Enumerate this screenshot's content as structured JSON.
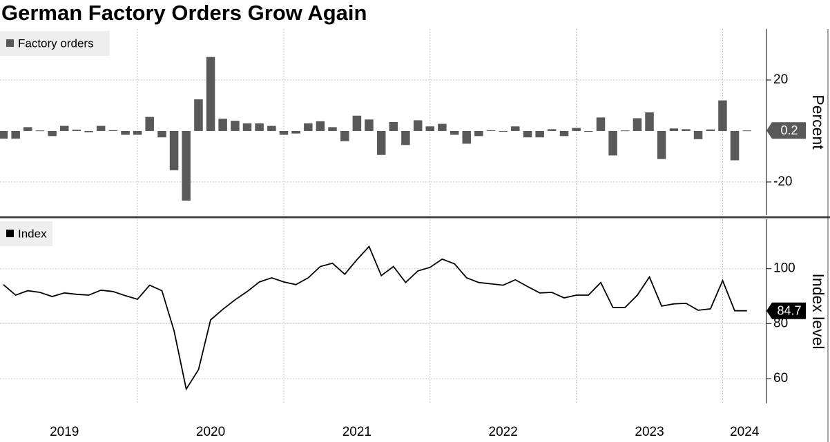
{
  "title": "German Factory Orders Grow Again",
  "chart_data": [
    {
      "type": "bar",
      "x": [
        2019.083,
        2019.167,
        2019.25,
        2019.333,
        2019.417,
        2019.5,
        2019.583,
        2019.667,
        2019.75,
        2019.833,
        2019.917,
        2020.0,
        2020.083,
        2020.167,
        2020.25,
        2020.333,
        2020.417,
        2020.5,
        2020.583,
        2020.667,
        2020.75,
        2020.833,
        2020.917,
        2021.0,
        2021.083,
        2021.167,
        2021.25,
        2021.333,
        2021.417,
        2021.5,
        2021.583,
        2021.667,
        2021.75,
        2021.833,
        2021.917,
        2022.0,
        2022.083,
        2022.167,
        2022.25,
        2022.333,
        2022.417,
        2022.5,
        2022.583,
        2022.667,
        2022.75,
        2022.833,
        2022.917,
        2023.0,
        2023.083,
        2023.167,
        2023.25,
        2023.333,
        2023.417,
        2023.5,
        2023.583,
        2023.667,
        2023.75,
        2023.833,
        2023.917,
        2024.0,
        2024.083,
        2024.167
      ],
      "series": [
        {
          "name": "Factory orders",
          "color": "#595959",
          "values": [
            -3,
            -3,
            1.5,
            0.2,
            -2,
            2,
            0.5,
            -0.5,
            2,
            0.3,
            -1.5,
            -1.5,
            5.5,
            -2.5,
            -15.4,
            -27.3,
            12.4,
            29,
            4.8,
            4,
            3,
            3,
            2,
            -1.5,
            -1,
            3,
            3.8,
            1.5,
            -4,
            6,
            4.5,
            -9.4,
            3.5,
            -5.5,
            4.2,
            1.8,
            2.8,
            -1.5,
            -5,
            -2,
            0.3,
            -0.3,
            1.8,
            -2.5,
            -2.5,
            0.7,
            -2,
            1.2,
            -0.3,
            5.3,
            -9.6,
            0.2,
            5,
            7.3,
            -11,
            1,
            0.7,
            -3.2,
            0.6,
            12,
            -11.5,
            0.2
          ]
        }
      ],
      "ylabel": "Percent",
      "xlim": [
        2019.06,
        2024.3
      ],
      "ylim": [
        -33,
        40
      ],
      "yticks": [
        -20,
        20
      ],
      "xgrid": [
        2020,
        2021,
        2022,
        2023,
        2024
      ],
      "grid": true
    },
    {
      "type": "line",
      "x": [
        2019.083,
        2019.167,
        2019.25,
        2019.333,
        2019.417,
        2019.5,
        2019.583,
        2019.667,
        2019.75,
        2019.833,
        2019.917,
        2020.0,
        2020.083,
        2020.167,
        2020.25,
        2020.333,
        2020.417,
        2020.5,
        2020.583,
        2020.667,
        2020.75,
        2020.833,
        2020.917,
        2021.0,
        2021.083,
        2021.167,
        2021.25,
        2021.333,
        2021.417,
        2021.5,
        2021.583,
        2021.667,
        2021.75,
        2021.833,
        2021.917,
        2022.0,
        2022.083,
        2022.167,
        2022.25,
        2022.333,
        2022.417,
        2022.5,
        2022.583,
        2022.667,
        2022.75,
        2022.833,
        2022.917,
        2023.0,
        2023.083,
        2023.167,
        2023.25,
        2023.333,
        2023.417,
        2023.5,
        2023.583,
        2023.667,
        2023.75,
        2023.833,
        2023.917,
        2024.0,
        2024.083,
        2024.167
      ],
      "series": [
        {
          "name": "Index",
          "color": "#000000",
          "values": [
            94.2,
            90.4,
            92.0,
            91.4,
            89.9,
            91.2,
            90.7,
            90.4,
            92.2,
            91.7,
            90.2,
            88.9,
            94.0,
            92.0,
            77.4,
            56.2,
            63.3,
            81.4,
            85.2,
            88.7,
            91.7,
            95.2,
            96.7,
            95.2,
            94.2,
            96.7,
            100.8,
            102.0,
            98.0,
            103.3,
            108.1,
            97.5,
            100.8,
            95.0,
            99.2,
            100.5,
            103.5,
            101.8,
            96.7,
            95.0,
            94.5,
            94.0,
            96.0,
            93.5,
            91.2,
            91.4,
            89.4,
            90.4,
            90.4,
            95.0,
            85.9,
            85.9,
            90.4,
            97.0,
            86.4,
            87.2,
            87.4,
            84.9,
            85.4,
            95.7,
            84.7,
            84.7
          ]
        }
      ],
      "ylabel": "Index level",
      "xlim": [
        2019.06,
        2024.3
      ],
      "ylim": [
        51,
        118
      ],
      "yticks": [
        60,
        80,
        100
      ],
      "xticks": [
        {
          "value": 2019.5,
          "label": "2019"
        },
        {
          "value": 2020.5,
          "label": "2020"
        },
        {
          "value": 2021.5,
          "label": "2021"
        },
        {
          "value": 2022.5,
          "label": "2022"
        },
        {
          "value": 2023.5,
          "label": "2023"
        },
        {
          "value": 2024.15,
          "label": "2024"
        }
      ],
      "xgrid": [
        2020,
        2021,
        2022,
        2023,
        2024
      ],
      "grid": true
    }
  ]
}
